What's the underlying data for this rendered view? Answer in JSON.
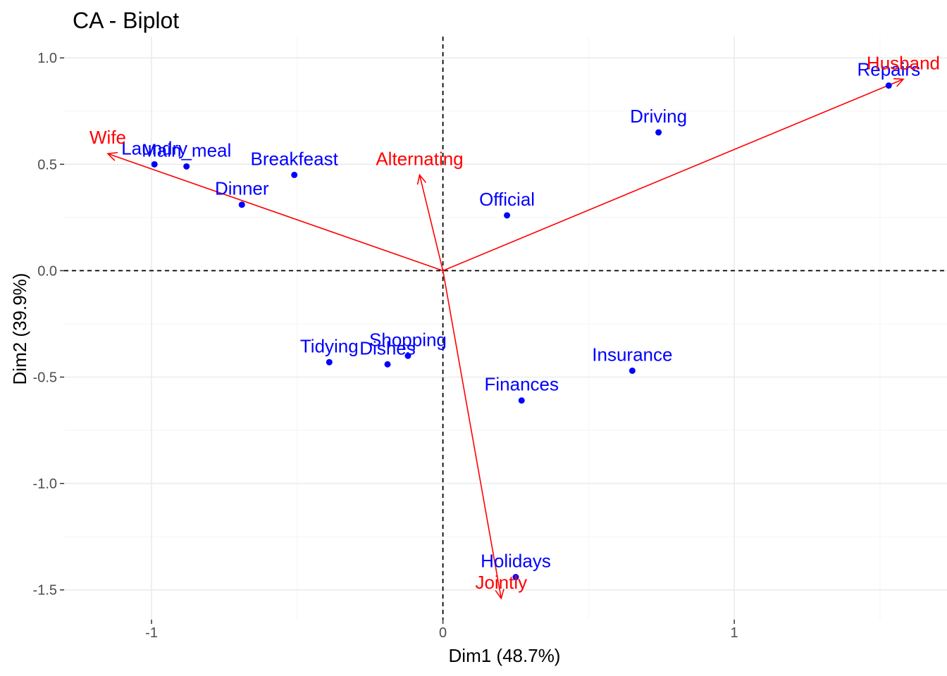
{
  "chart_data": {
    "type": "scatter",
    "title": "CA - Biplot",
    "xlabel": "Dim1 (48.7%)",
    "ylabel": "Dim2 (39.9%)",
    "xlim": [
      -1.3,
      1.73
    ],
    "ylim": [
      -1.64,
      1.1
    ],
    "x_ticks": [
      -1,
      0,
      1
    ],
    "x_tick_labels": [
      "-1",
      "0",
      "1"
    ],
    "y_ticks": [
      -1.5,
      -1.0,
      -0.5,
      0.0,
      0.5,
      1.0
    ],
    "y_tick_labels": [
      "-1.5",
      "-1.0",
      "-0.5",
      "0.0",
      "0.5",
      "1.0"
    ],
    "grid": true,
    "reference_lines": {
      "x": 0,
      "y": 0,
      "style": "dashed"
    },
    "colors": {
      "rows": "#0000ff",
      "columns": "#ff0000",
      "grid_major": "#ebebeb",
      "grid_minor": "#f5f5f5"
    },
    "rows": [
      {
        "name": "Laundry",
        "x": -0.99,
        "y": 0.5
      },
      {
        "name": "Main_meal",
        "x": -0.88,
        "y": 0.49
      },
      {
        "name": "Dinner",
        "x": -0.69,
        "y": 0.31
      },
      {
        "name": "Breakfeast",
        "x": -0.51,
        "y": 0.45
      },
      {
        "name": "Tidying",
        "x": -0.39,
        "y": -0.43
      },
      {
        "name": "Dishes",
        "x": -0.19,
        "y": -0.44
      },
      {
        "name": "Shopping",
        "x": -0.12,
        "y": -0.4
      },
      {
        "name": "Official",
        "x": 0.22,
        "y": 0.26
      },
      {
        "name": "Driving",
        "x": 0.74,
        "y": 0.65
      },
      {
        "name": "Finances",
        "x": 0.27,
        "y": -0.61
      },
      {
        "name": "Insurance",
        "x": 0.65,
        "y": -0.47
      },
      {
        "name": "Repairs",
        "x": 1.53,
        "y": 0.87
      },
      {
        "name": "Holidays",
        "x": 0.25,
        "y": -1.44
      }
    ],
    "columns": [
      {
        "name": "Wife",
        "x": -1.15,
        "y": 0.55
      },
      {
        "name": "Alternating",
        "x": -0.08,
        "y": 0.45
      },
      {
        "name": "Husband",
        "x": 1.58,
        "y": 0.9
      },
      {
        "name": "Jointly",
        "x": 0.2,
        "y": -1.54
      }
    ]
  }
}
